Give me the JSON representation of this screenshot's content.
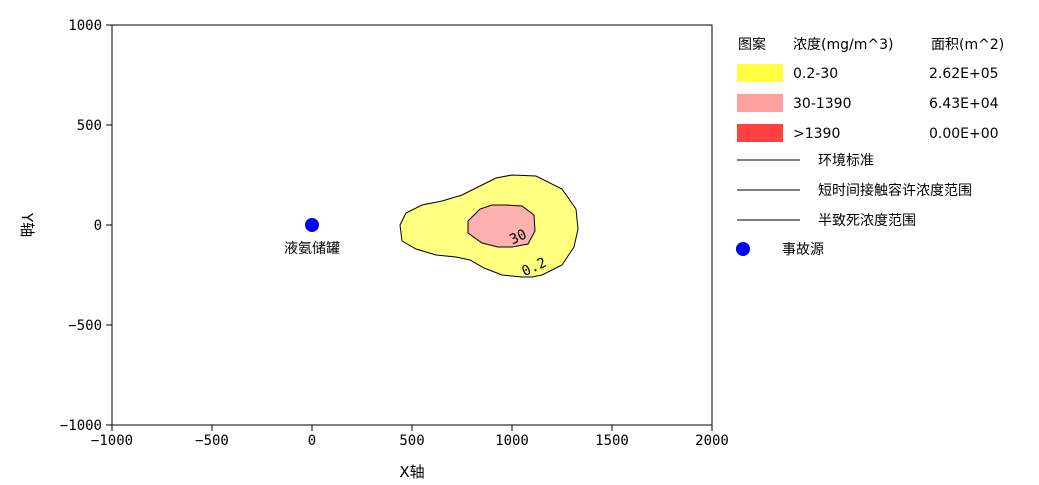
{
  "chart_data": {
    "type": "contour",
    "title": "",
    "xlabel": "X轴",
    "ylabel": "Y轴",
    "xlim": [
      -1000,
      2000
    ],
    "ylim": [
      -1000,
      1000
    ],
    "xticks": [
      -1000,
      -500,
      0,
      500,
      1000,
      1500,
      2000
    ],
    "yticks": [
      1000,
      500,
      0,
      -500,
      -1000
    ],
    "xtick_labels": [
      "−1000",
      "−500",
      "0",
      "500",
      "1000",
      "1500",
      "2000"
    ],
    "ytick_labels": [
      "1000",
      "500",
      "0",
      "−500",
      "−1000"
    ],
    "grid": false,
    "source": {
      "label": "液氨储罐",
      "x": 0,
      "y": 0,
      "color": "#0000ff"
    },
    "contours": [
      {
        "level_label": "0.2",
        "fill": "#ffff80",
        "outline": [
          [
            1000,
            250
          ],
          [
            1120,
            245
          ],
          [
            1250,
            180
          ],
          [
            1320,
            80
          ],
          [
            1330,
            -20
          ],
          [
            1310,
            -110
          ],
          [
            1250,
            -200
          ],
          [
            1150,
            -250
          ],
          [
            1100,
            -260
          ],
          [
            1050,
            -260
          ],
          [
            950,
            -250
          ],
          [
            860,
            -215
          ],
          [
            790,
            -175
          ],
          [
            720,
            -160
          ],
          [
            620,
            -150
          ],
          [
            520,
            -120
          ],
          [
            450,
            -80
          ],
          [
            440,
            0
          ],
          [
            470,
            60
          ],
          [
            550,
            100
          ],
          [
            650,
            120
          ],
          [
            750,
            150
          ],
          [
            850,
            200
          ],
          [
            920,
            235
          ]
        ],
        "label_at": [
          1120,
          -230
        ]
      },
      {
        "level_label": "30",
        "fill": "#ffb0b0",
        "outline": [
          [
            970,
            100
          ],
          [
            1050,
            95
          ],
          [
            1110,
            50
          ],
          [
            1115,
            -30
          ],
          [
            1080,
            -95
          ],
          [
            1000,
            -110
          ],
          [
            930,
            -110
          ],
          [
            850,
            -90
          ],
          [
            780,
            -40
          ],
          [
            780,
            20
          ],
          [
            840,
            80
          ],
          [
            900,
            100
          ]
        ],
        "label_at": [
          1040,
          -80
        ]
      }
    ],
    "legend": {
      "header": [
        "图案",
        "浓度(mg/m^3)",
        "面积(m^2)"
      ],
      "entries": [
        {
          "color": "#ffff40",
          "range": "0.2-30",
          "area": "2.62E+05"
        },
        {
          "color": "#ffa0a0",
          "range": "30-1390",
          "area": "6.43E+04"
        },
        {
          "color": "#ff4040",
          "range": ">1390",
          "area": "0.00E+00"
        }
      ],
      "lines": [
        "环境标准",
        "短时间接触容许浓度范围",
        "半致死浓度范围"
      ],
      "source_label": "事故源",
      "source_color": "#0000ff"
    }
  }
}
